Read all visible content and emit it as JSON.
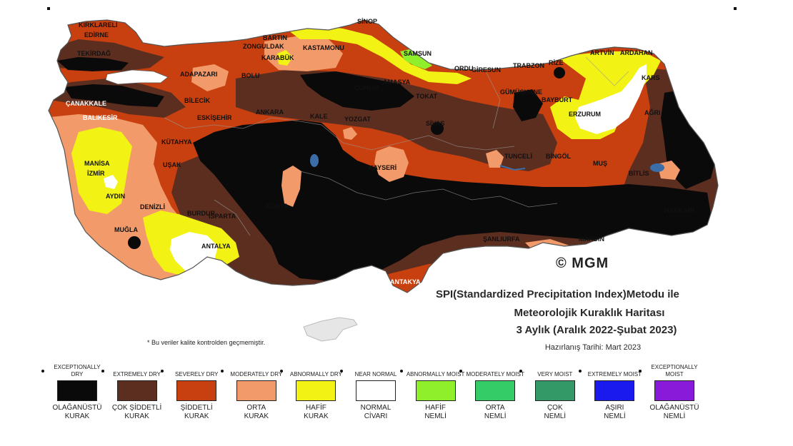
{
  "title": {
    "line1": "SPI(Standardized Precipitation Index)Metodu ile",
    "line2": "Meteorolojik Kuraklık Haritası",
    "line3": "3 Aylık (Aralık 2022-Şubat 2023)",
    "line4": "Hazırlanış Tarihi: Mart 2023"
  },
  "copyright": "© MGM",
  "note": "* Bu veriler kalite kontrolden geçmemiştir.",
  "colors": {
    "exceptionally_dry": "#0a0a0a",
    "extremely_dry": "#5c2e20",
    "severely_dry": "#c8400f",
    "moderately_dry": "#f29a6a",
    "abnormally_dry": "#f2f215",
    "near_normal": "#ffffff",
    "abnormally_moist": "#8fef2a",
    "moderately_moist": "#33cc66",
    "very_moist": "#339966",
    "extremely_moist": "#1a1aee",
    "exceptionally_moist": "#8a1ad9"
  },
  "legend": [
    {
      "en": "EXCEPTIONALLY DRY",
      "tr": "OLAĞANÜSTÜ\nKURAK",
      "color": "#0a0a0a"
    },
    {
      "en": "EXTREMELY DRY",
      "tr": "ÇOK ŞİDDETLİ\nKURAK",
      "color": "#5c2e20"
    },
    {
      "en": "SEVERELY DRY",
      "tr": "ŞİDDETLİ\nKURAK",
      "color": "#c8400f"
    },
    {
      "en": "MODERATELY DRY",
      "tr": "ORTA\nKURAK",
      "color": "#f29a6a"
    },
    {
      "en": "ABNORMALLY DRY",
      "tr": "HAFİF\nKURAK",
      "color": "#f2f215"
    },
    {
      "en": "NEAR NORMAL",
      "tr": "NORMAL\nCİVARI",
      "color": "#ffffff"
    },
    {
      "en": "ABNORMALLY MOIST",
      "tr": "HAFİF\nNEMLİ",
      "color": "#8fef2a"
    },
    {
      "en": "MODERATELY MOIST",
      "tr": "ORTA\nNEMLİ",
      "color": "#33cc66"
    },
    {
      "en": "VERY MOIST",
      "tr": "ÇOK\nNEMLİ",
      "color": "#339966"
    },
    {
      "en": "EXTREMELY MOIST",
      "tr": "AŞIRI\nNEMLİ",
      "color": "#1a1aee"
    },
    {
      "en": "EXCEPTIONALLY MOIST",
      "tr": "OLAĞANÜSTÜ\nNEMLİ",
      "color": "#8a1ad9"
    }
  ],
  "cities": [
    {
      "name": "KIRKLARELİ"
    },
    {
      "name": "EDİRNE"
    },
    {
      "name": "TEKİRDAĞ"
    },
    {
      "name": "SİNOP"
    },
    {
      "name": "BARTIN"
    },
    {
      "name": "ZONGULDAK"
    },
    {
      "name": "KARABÜK"
    },
    {
      "name": "KASTAMONU"
    },
    {
      "name": "SAMSUN"
    },
    {
      "name": "ORDU"
    },
    {
      "name": "GİRESUN"
    },
    {
      "name": "TRABZON"
    },
    {
      "name": "RİZE"
    },
    {
      "name": "ARTVİN"
    },
    {
      "name": "ARDAHAN"
    },
    {
      "name": "KARS"
    },
    {
      "name": "ADAPAZARI"
    },
    {
      "name": "BOLU"
    },
    {
      "name": "ÇANAKKALE"
    },
    {
      "name": "BİLECİK"
    },
    {
      "name": "ÇORUM"
    },
    {
      "name": "AMASYA"
    },
    {
      "name": "TOKAT"
    },
    {
      "name": "GÜMÜŞHANE"
    },
    {
      "name": "BAYBURT"
    },
    {
      "name": "ERZURUM"
    },
    {
      "name": "AĞRI"
    },
    {
      "name": "BALIKESİR"
    },
    {
      "name": "ESKİŞEHİR"
    },
    {
      "name": "ANKARA"
    },
    {
      "name": "KALE"
    },
    {
      "name": "YOZGAT"
    },
    {
      "name": "SİVAS"
    },
    {
      "name": "KÜTAHYA"
    },
    {
      "name": "MANİSA"
    },
    {
      "name": "İZMİR"
    },
    {
      "name": "UŞAK"
    },
    {
      "name": "AYDIN"
    },
    {
      "name": "TUNCELİ"
    },
    {
      "name": "BİNGÖL"
    },
    {
      "name": "MUŞ"
    },
    {
      "name": "BİTLİS"
    },
    {
      "name": "KAYSERİ"
    },
    {
      "name": "KONYA"
    },
    {
      "name": "DENİZLİ"
    },
    {
      "name": "BURDUR"
    },
    {
      "name": "ISPARTA"
    },
    {
      "name": "MUĞLA"
    },
    {
      "name": "ANTALYA"
    },
    {
      "name": "HAKKARİ"
    },
    {
      "name": "ŞANLIURFA"
    },
    {
      "name": "MARDİN"
    },
    {
      "name": "ANTAKYA"
    }
  ]
}
